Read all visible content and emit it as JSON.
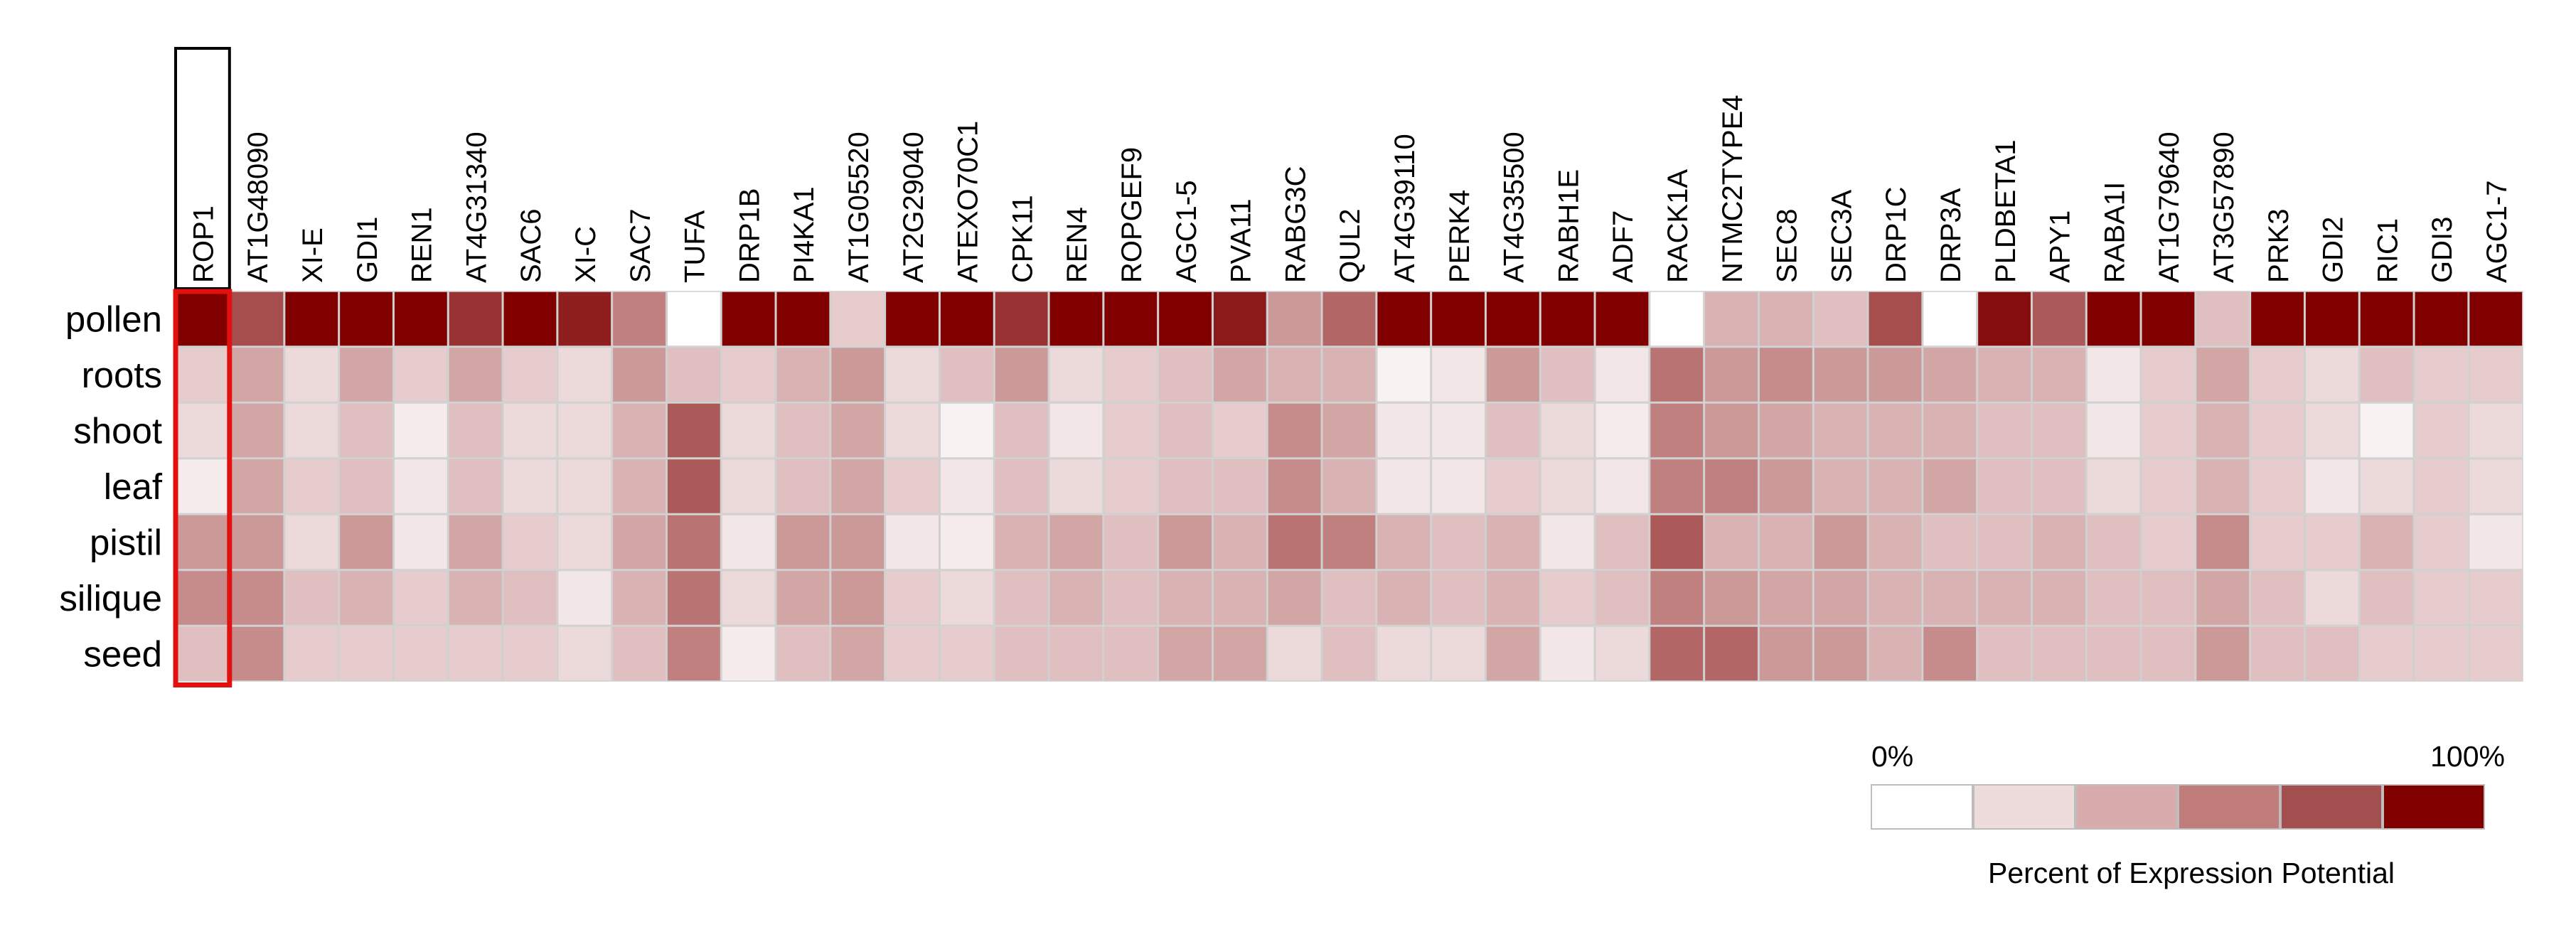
{
  "chart_data": {
    "type": "heatmap",
    "title": "",
    "columns": [
      "ROP1",
      "AT1G48090",
      "XI-E",
      "GDI1",
      "REN1",
      "AT4G31340",
      "SAC6",
      "XI-C",
      "SAC7",
      "TUFA",
      "DRP1B",
      "PI4KA1",
      "AT1G05520",
      "AT2G29040",
      "ATEXO70C1",
      "CPK11",
      "REN4",
      "ROPGEF9",
      "AGC1-5",
      "PVA11",
      "RABG3C",
      "QUL2",
      "AT4G39110",
      "PERK4",
      "AT4G35500",
      "RABH1E",
      "ADF7",
      "RACK1A",
      "NTMC2TYPE4",
      "SEC8",
      "SEC3A",
      "DRP1C",
      "DRP3A",
      "PLDBETA1",
      "APY1",
      "RABA1I",
      "AT1G79640",
      "AT3G57890",
      "PRK3",
      "GDI2",
      "RIC1",
      "GDI3",
      "AGC1-7"
    ],
    "rows": [
      "pollen",
      "roots",
      "shoot",
      "leaf",
      "pistil",
      "silique",
      "seed"
    ],
    "value_units": "percent of expression potential",
    "value_range": [
      0,
      100
    ],
    "values": [
      [
        100,
        70,
        100,
        100,
        100,
        80,
        100,
        88,
        50,
        0,
        100,
        100,
        20,
        100,
        100,
        80,
        100,
        100,
        100,
        90,
        40,
        60,
        100,
        100,
        100,
        100,
        100,
        0,
        30,
        30,
        25,
        70,
        0,
        95,
        65,
        100,
        100,
        25,
        100,
        100,
        100,
        100,
        100
      ],
      [
        20,
        35,
        15,
        35,
        20,
        35,
        20,
        15,
        40,
        25,
        20,
        30,
        40,
        15,
        25,
        40,
        15,
        20,
        25,
        35,
        30,
        30,
        5,
        10,
        40,
        25,
        10,
        55,
        40,
        45,
        40,
        40,
        35,
        30,
        30,
        10,
        20,
        35,
        20,
        15,
        25,
        20,
        20
      ],
      [
        15,
        35,
        15,
        25,
        8,
        25,
        15,
        15,
        30,
        65,
        15,
        25,
        35,
        15,
        5,
        25,
        10,
        20,
        25,
        20,
        45,
        35,
        10,
        10,
        25,
        15,
        8,
        50,
        40,
        35,
        30,
        30,
        30,
        25,
        25,
        10,
        20,
        30,
        20,
        15,
        5,
        20,
        15
      ],
      [
        8,
        35,
        20,
        25,
        10,
        25,
        15,
        15,
        30,
        65,
        15,
        25,
        35,
        20,
        10,
        25,
        15,
        20,
        25,
        25,
        45,
        30,
        10,
        10,
        20,
        15,
        10,
        50,
        50,
        40,
        30,
        30,
        35,
        25,
        25,
        15,
        20,
        30,
        20,
        10,
        15,
        20,
        15
      ],
      [
        40,
        40,
        15,
        40,
        10,
        35,
        20,
        15,
        35,
        55,
        10,
        40,
        40,
        10,
        8,
        30,
        35,
        25,
        40,
        30,
        55,
        50,
        30,
        25,
        30,
        10,
        25,
        65,
        30,
        30,
        40,
        30,
        25,
        25,
        30,
        25,
        20,
        45,
        20,
        20,
        30,
        20,
        10
      ],
      [
        45,
        45,
        25,
        30,
        20,
        30,
        25,
        10,
        30,
        55,
        15,
        35,
        40,
        20,
        15,
        25,
        30,
        25,
        30,
        30,
        35,
        25,
        30,
        25,
        30,
        20,
        25,
        50,
        40,
        35,
        35,
        30,
        30,
        30,
        30,
        25,
        25,
        35,
        25,
        15,
        25,
        20,
        20
      ],
      [
        25,
        45,
        20,
        20,
        20,
        20,
        20,
        15,
        25,
        50,
        8,
        25,
        35,
        20,
        20,
        25,
        25,
        25,
        35,
        35,
        15,
        25,
        15,
        15,
        35,
        10,
        15,
        60,
        60,
        40,
        40,
        30,
        45,
        25,
        25,
        25,
        25,
        40,
        25,
        25,
        20,
        20,
        20
      ]
    ],
    "highlighted_column": "ROP1",
    "legend": {
      "title": "Percent of Expression Potential",
      "min_label": "0%",
      "max_label": "100%",
      "colors": [
        "#ffffff",
        "#eedcdc",
        "#d8acac",
        "#c17c7c",
        "#a44f4f",
        "#800000"
      ]
    }
  },
  "colors": {
    "low": "#ffffff",
    "high": "#800000",
    "highlight_box": "#e31010",
    "header_box": "#000000",
    "cell_border": "#cfcfcf"
  }
}
